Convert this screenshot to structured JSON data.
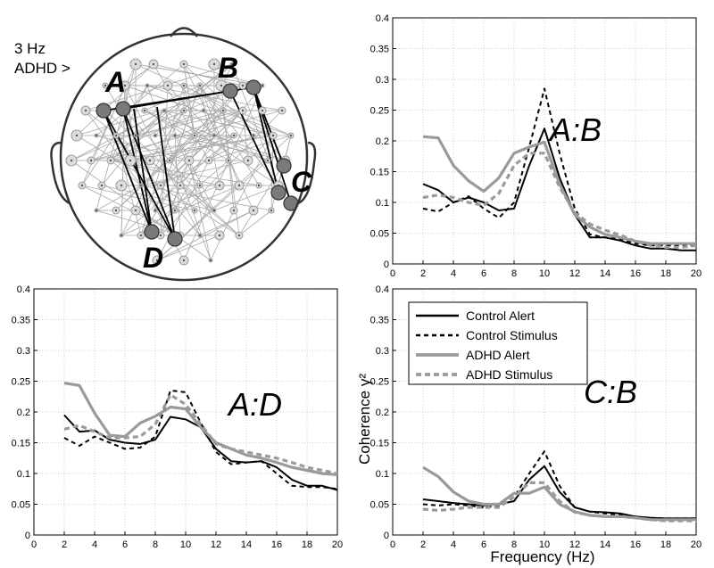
{
  "head_map": {
    "label_freq": "3 Hz",
    "label_group": "ADHD >",
    "electrode_labels": [
      "A",
      "B",
      "C",
      "D"
    ]
  },
  "chart_data": [
    {
      "type": "line",
      "panel": "top-right",
      "annotation": "A:B",
      "xlim": [
        0,
        20
      ],
      "ylim": [
        0,
        0.4
      ],
      "xticks": [
        "0",
        "2",
        "4",
        "6",
        "8",
        "10",
        "12",
        "14",
        "16",
        "18",
        "20"
      ],
      "yticks": [
        "0",
        "0.05",
        "0.1",
        "0.15",
        "0.2",
        "0.25",
        "0.3",
        "0.35",
        "0.4"
      ],
      "xlabel": "",
      "ylabel": "",
      "grid": true,
      "series": [
        {
          "key": "control_alert",
          "x": [
            2,
            3,
            4,
            5,
            6,
            7,
            8,
            9,
            10,
            11,
            12,
            13,
            14,
            15,
            16,
            17,
            18,
            19,
            20
          ],
          "y": [
            0.13,
            0.12,
            0.1,
            0.108,
            0.1,
            0.087,
            0.09,
            0.16,
            0.22,
            0.14,
            0.08,
            0.043,
            0.043,
            0.038,
            0.03,
            0.025,
            0.025,
            0.022,
            0.022
          ]
        },
        {
          "key": "control_stimulus",
          "x": [
            2,
            3,
            4,
            5,
            6,
            7,
            8,
            9,
            10,
            11,
            12,
            13,
            14,
            15,
            16,
            17,
            18,
            19,
            20
          ],
          "y": [
            0.09,
            0.085,
            0.1,
            0.11,
            0.09,
            0.075,
            0.1,
            0.19,
            0.285,
            0.18,
            0.09,
            0.048,
            0.043,
            0.04,
            0.033,
            0.03,
            0.03,
            0.03,
            0.03
          ]
        },
        {
          "key": "adhd_alert",
          "x": [
            2,
            3,
            4,
            5,
            6,
            7,
            8,
            9,
            10,
            11,
            12,
            13,
            14,
            15,
            16,
            17,
            18,
            19,
            20
          ],
          "y": [
            0.207,
            0.205,
            0.16,
            0.135,
            0.118,
            0.14,
            0.18,
            0.19,
            0.198,
            0.13,
            0.08,
            0.06,
            0.048,
            0.043,
            0.037,
            0.033,
            0.033,
            0.033,
            0.033
          ]
        },
        {
          "key": "adhd_stimulus",
          "x": [
            2,
            3,
            4,
            5,
            6,
            7,
            8,
            9,
            10,
            11,
            12,
            13,
            14,
            15,
            16,
            17,
            18,
            19,
            20
          ],
          "y": [
            0.108,
            0.112,
            0.108,
            0.1,
            0.095,
            0.115,
            0.16,
            0.18,
            0.18,
            0.125,
            0.083,
            0.065,
            0.055,
            0.047,
            0.037,
            0.03,
            0.027,
            0.027,
            0.03
          ]
        }
      ]
    },
    {
      "type": "line",
      "panel": "bottom-left",
      "annotation": "A:D",
      "xlim": [
        0,
        20
      ],
      "ylim": [
        0,
        0.4
      ],
      "xticks": [
        "0",
        "2",
        "4",
        "6",
        "8",
        "10",
        "12",
        "14",
        "16",
        "18",
        "20"
      ],
      "yticks": [
        "0",
        "0.05",
        "0.1",
        "0.15",
        "0.2",
        "0.25",
        "0.3",
        "0.35",
        "0.4"
      ],
      "xlabel": "",
      "ylabel": "",
      "grid": true,
      "series": [
        {
          "key": "control_alert",
          "x": [
            2,
            3,
            4,
            5,
            6,
            7,
            8,
            9,
            10,
            11,
            12,
            13,
            14,
            15,
            16,
            17,
            18,
            19,
            20
          ],
          "y": [
            0.195,
            0.168,
            0.17,
            0.155,
            0.15,
            0.148,
            0.155,
            0.192,
            0.188,
            0.175,
            0.14,
            0.12,
            0.118,
            0.12,
            0.11,
            0.09,
            0.08,
            0.08,
            0.073
          ]
        },
        {
          "key": "control_stimulus",
          "x": [
            2,
            3,
            4,
            5,
            6,
            7,
            8,
            9,
            10,
            11,
            12,
            13,
            14,
            15,
            16,
            17,
            18,
            19,
            20
          ],
          "y": [
            0.158,
            0.145,
            0.16,
            0.15,
            0.14,
            0.142,
            0.16,
            0.235,
            0.232,
            0.182,
            0.135,
            0.115,
            0.118,
            0.12,
            0.1,
            0.08,
            0.078,
            0.078,
            0.075
          ]
        },
        {
          "key": "adhd_alert",
          "x": [
            2,
            3,
            4,
            5,
            6,
            7,
            8,
            9,
            10,
            11,
            12,
            13,
            14,
            15,
            16,
            17,
            18,
            19,
            20
          ],
          "y": [
            0.247,
            0.243,
            0.198,
            0.162,
            0.16,
            0.182,
            0.193,
            0.208,
            0.205,
            0.175,
            0.15,
            0.14,
            0.13,
            0.125,
            0.118,
            0.11,
            0.105,
            0.1,
            0.098
          ]
        },
        {
          "key": "adhd_stimulus",
          "x": [
            2,
            3,
            4,
            5,
            6,
            7,
            8,
            9,
            10,
            11,
            12,
            13,
            14,
            15,
            16,
            17,
            18,
            19,
            20
          ],
          "y": [
            0.172,
            0.178,
            0.168,
            0.158,
            0.158,
            0.16,
            0.18,
            0.228,
            0.212,
            0.18,
            0.148,
            0.14,
            0.135,
            0.13,
            0.125,
            0.118,
            0.11,
            0.105,
            0.1
          ]
        }
      ]
    },
    {
      "type": "line",
      "panel": "bottom-right",
      "annotation": "C:B",
      "xlim": [
        0,
        20
      ],
      "ylim": [
        0,
        0.4
      ],
      "xticks": [
        "0",
        "2",
        "4",
        "6",
        "8",
        "10",
        "12",
        "14",
        "16",
        "18",
        "20"
      ],
      "yticks": [
        "0",
        "0.05",
        "0.1",
        "0.15",
        "0.2",
        "0.25",
        "0.3",
        "0.35",
        "0.4"
      ],
      "xlabel": "Frequency (Hz)",
      "ylabel": "Coherence γ²",
      "grid": true,
      "legend": "top-left",
      "series": [
        {
          "key": "control_alert",
          "name": "Control Alert",
          "x": [
            2,
            3,
            4,
            5,
            6,
            7,
            8,
            9,
            10,
            11,
            12,
            13,
            14,
            15,
            16,
            17,
            18,
            19,
            20
          ],
          "y": [
            0.058,
            0.055,
            0.052,
            0.05,
            0.048,
            0.05,
            0.055,
            0.09,
            0.112,
            0.07,
            0.045,
            0.038,
            0.037,
            0.035,
            0.03,
            0.028,
            0.027,
            0.027,
            0.027
          ]
        },
        {
          "key": "control_stimulus",
          "name": "Control Stimulus",
          "x": [
            2,
            3,
            4,
            5,
            6,
            7,
            8,
            9,
            10,
            11,
            12,
            13,
            14,
            15,
            16,
            17,
            18,
            19,
            20
          ],
          "y": [
            0.05,
            0.048,
            0.05,
            0.048,
            0.045,
            0.048,
            0.062,
            0.1,
            0.136,
            0.08,
            0.045,
            0.038,
            0.035,
            0.033,
            0.03,
            0.028,
            0.027,
            0.027,
            0.027
          ]
        },
        {
          "key": "adhd_alert",
          "name": "ADHD Alert",
          "x": [
            2,
            3,
            4,
            5,
            6,
            7,
            8,
            9,
            10,
            11,
            12,
            13,
            14,
            15,
            16,
            17,
            18,
            19,
            20
          ],
          "y": [
            0.11,
            0.095,
            0.07,
            0.055,
            0.05,
            0.05,
            0.068,
            0.068,
            0.078,
            0.05,
            0.038,
            0.032,
            0.03,
            0.03,
            0.028,
            0.025,
            0.025,
            0.025,
            0.025
          ]
        },
        {
          "key": "adhd_stimulus",
          "name": "ADHD Stimulus",
          "x": [
            2,
            3,
            4,
            5,
            6,
            7,
            8,
            9,
            10,
            11,
            12,
            13,
            14,
            15,
            16,
            17,
            18,
            19,
            20
          ],
          "y": [
            0.042,
            0.04,
            0.042,
            0.045,
            0.045,
            0.045,
            0.062,
            0.085,
            0.085,
            0.055,
            0.037,
            0.032,
            0.03,
            0.03,
            0.028,
            0.025,
            0.023,
            0.023,
            0.023
          ]
        }
      ]
    }
  ],
  "styles": {
    "control_alert": {
      "color": "#000000",
      "dash": "",
      "width": 2.0
    },
    "control_stimulus": {
      "color": "#000000",
      "dash": "5,4",
      "width": 2.0
    },
    "adhd_alert": {
      "color": "#9a9a9a",
      "dash": "",
      "width": 3.2
    },
    "adhd_stimulus": {
      "color": "#9a9a9a",
      "dash": "6,4",
      "width": 3.2
    },
    "grid": "#cfcfcf",
    "axis": "#000000"
  }
}
